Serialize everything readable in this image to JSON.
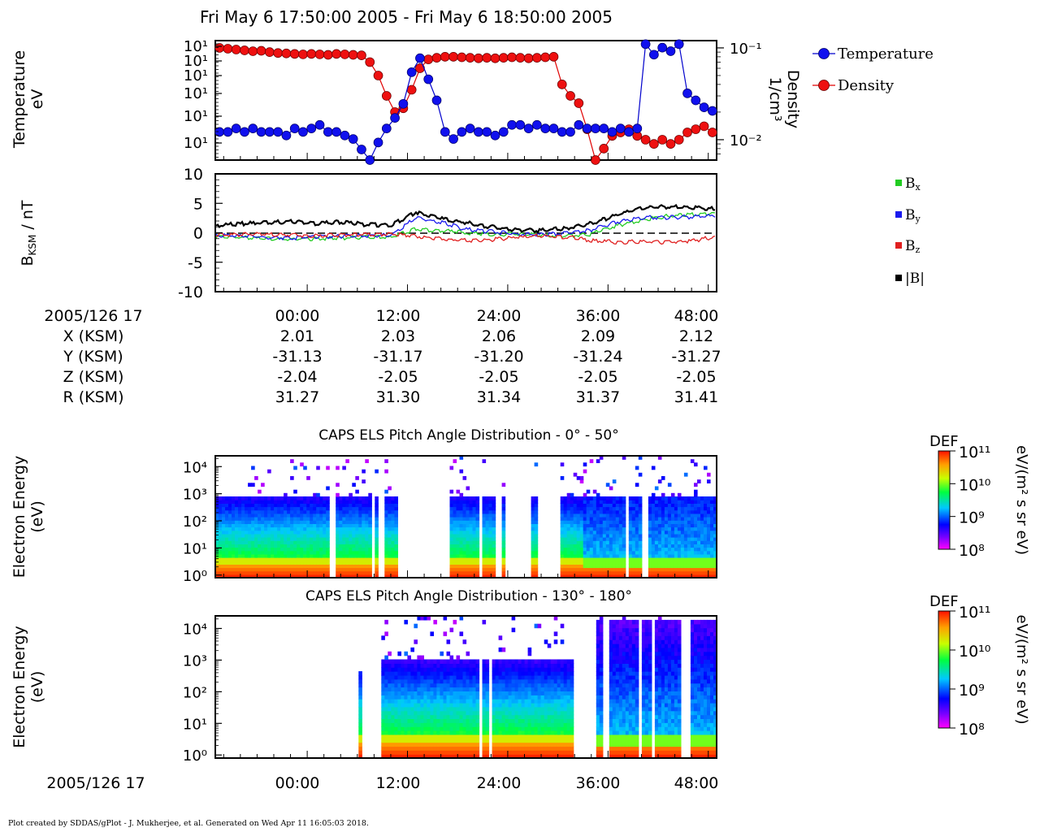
{
  "title": "Fri May 6 17:50:00 2005 - Fri May 6 18:50:00 2005",
  "footer": "Plot created by SDDAS/gPlot - J. Mukherjee, et al.  Generated on Wed Apr 11 16:05:03 2018.",
  "colors": {
    "temperature": "#0000cc",
    "density": "#e00000",
    "bx": "#22cc22",
    "by": "#1a1aee",
    "bz": "#e02020",
    "bmag": "#000000"
  },
  "chart_data": [
    {
      "type": "line",
      "panel": "plasma-moments",
      "ylabel": [
        "Temperature",
        "eV"
      ],
      "y2label": [
        "Density",
        "1/cm³"
      ],
      "y_tick_labels": [
        "10¹",
        "10¹",
        "10¹",
        "10¹",
        "10¹",
        "10¹"
      ],
      "y2_tick_labels": [
        "10⁻¹",
        "10⁻²"
      ],
      "y2lim": [
        0.006,
        0.12
      ],
      "y2_scale": "log",
      "xlim": [
        -11,
        49
      ],
      "legend": {
        "placement": "right",
        "entries": [
          "Temperature",
          "Density"
        ]
      },
      "series": [
        {
          "name": "Temperature",
          "color": "#0000cc",
          "x": [
            -10.5,
            -9.5,
            -8.5,
            -7.5,
            -6.5,
            -5.5,
            -4.5,
            -3.5,
            -2.5,
            -1.5,
            -0.5,
            0.5,
            1.5,
            2.5,
            3.5,
            4.5,
            5.5,
            6.5,
            7.5,
            8.5,
            9.5,
            10.5,
            11.5,
            12.5,
            13.5,
            14.5,
            15.5,
            16.5,
            17.5,
            18.5,
            19.5,
            20.5,
            21.5,
            22.5,
            23.5,
            24.5,
            25.5,
            26.5,
            27.5,
            28.5,
            29.5,
            30.5,
            31.5,
            32.5,
            33.5,
            34.5,
            35.5,
            36.5,
            37.5,
            38.5,
            39.5,
            40.5,
            41.5,
            42.5,
            43.5,
            44.5,
            45.5,
            46.5,
            47.5,
            48.5
          ],
          "values": [
            3.4,
            3.4,
            3.5,
            3.4,
            3.5,
            3.4,
            3.4,
            3.4,
            3.3,
            3.5,
            3.4,
            3.5,
            3.6,
            3.4,
            3.4,
            3.3,
            3.2,
            2.9,
            2.6,
            3.1,
            3.5,
            3.8,
            4.2,
            5.1,
            5.5,
            4.9,
            4.3,
            3.4,
            3.2,
            3.4,
            3.5,
            3.4,
            3.4,
            3.3,
            3.4,
            3.6,
            3.6,
            3.5,
            3.6,
            3.5,
            3.5,
            3.4,
            3.4,
            3.6,
            3.5,
            3.5,
            3.5,
            3.4,
            3.5,
            3.4,
            3.5,
            5.9,
            5.6,
            5.8,
            5.7,
            5.9,
            4.5,
            4.3,
            4.1,
            4.0
          ]
        },
        {
          "name": "Density",
          "color": "#e00000",
          "x": [
            -10.5,
            -9.5,
            -8.5,
            -7.5,
            -6.5,
            -5.5,
            -4.5,
            -3.5,
            -2.5,
            -1.5,
            -0.5,
            0.5,
            1.5,
            2.5,
            3.5,
            4.5,
            5.5,
            6.5,
            7.5,
            8.5,
            9.5,
            10.5,
            11.5,
            12.5,
            13.5,
            14.5,
            15.5,
            16.5,
            17.5,
            18.5,
            19.5,
            20.5,
            21.5,
            22.5,
            23.5,
            24.5,
            25.5,
            26.5,
            27.5,
            28.5,
            29.5,
            30.5,
            31.5,
            32.5,
            33.5,
            34.5,
            35.5,
            36.5,
            37.5,
            38.5,
            39.5,
            40.5,
            41.5,
            42.5,
            43.5,
            44.5,
            45.5,
            46.5,
            47.5,
            48.5
          ],
          "values": [
            0.1,
            0.098,
            0.096,
            0.094,
            0.092,
            0.093,
            0.09,
            0.088,
            0.087,
            0.086,
            0.085,
            0.086,
            0.085,
            0.084,
            0.086,
            0.085,
            0.084,
            0.083,
            0.07,
            0.05,
            0.03,
            0.02,
            0.022,
            0.035,
            0.06,
            0.075,
            0.078,
            0.08,
            0.08,
            0.079,
            0.078,
            0.077,
            0.078,
            0.077,
            0.078,
            0.079,
            0.078,
            0.077,
            0.078,
            0.079,
            0.08,
            0.04,
            0.03,
            0.025,
            0.013,
            0.006,
            0.008,
            0.011,
            0.012,
            0.013,
            0.011,
            0.01,
            0.009,
            0.01,
            0.009,
            0.01,
            0.012,
            0.013,
            0.014,
            0.012
          ]
        }
      ]
    },
    {
      "type": "line",
      "panel": "magnetic-field",
      "ylabel": "B_KSM / nT",
      "ylim": [
        -10,
        10
      ],
      "y_tick_labels": [
        "10",
        "5",
        "0",
        "-5",
        "-10"
      ],
      "xlim": [
        -11,
        49
      ],
      "legend": {
        "placement": "right",
        "entries": [
          "Bx",
          "By",
          "Bz",
          "|B|"
        ]
      },
      "series": [
        {
          "name": "Bx",
          "color": "#22cc22",
          "x": [
            -11,
            -8,
            -5,
            -2,
            1,
            4,
            7,
            10,
            13,
            16,
            19,
            22,
            25,
            28,
            31,
            34,
            37,
            40,
            43,
            46,
            49
          ],
          "values": [
            -0.6,
            -0.8,
            -1.0,
            -1.1,
            -1.0,
            -0.9,
            -0.7,
            -0.8,
            0.6,
            0.4,
            0.0,
            -0.3,
            -0.2,
            -0.4,
            -0.6,
            -0.2,
            1.2,
            2.2,
            2.8,
            3.1,
            3.3
          ]
        },
        {
          "name": "By",
          "color": "#1a1aee",
          "x": [
            -11,
            -8,
            -5,
            -2,
            1,
            4,
            7,
            10,
            13,
            16,
            19,
            22,
            25,
            28,
            31,
            34,
            37,
            40,
            43,
            46,
            49
          ],
          "values": [
            -0.4,
            -0.5,
            -0.8,
            -0.9,
            -0.7,
            -0.6,
            -0.5,
            -0.4,
            2.5,
            1.8,
            0.6,
            0.2,
            -0.2,
            -0.3,
            -0.1,
            0.5,
            1.8,
            2.6,
            2.6,
            2.7,
            2.9
          ]
        },
        {
          "name": "Bz",
          "color": "#e02020",
          "x": [
            -11,
            -8,
            -5,
            -2,
            1,
            4,
            7,
            10,
            13,
            16,
            19,
            22,
            25,
            28,
            31,
            34,
            37,
            40,
            43,
            46,
            49
          ],
          "values": [
            -0.4,
            -0.3,
            -0.2,
            -0.4,
            -0.5,
            -0.4,
            -0.3,
            -0.2,
            -0.6,
            -1.0,
            -1.3,
            -1.2,
            -0.8,
            -0.5,
            -0.7,
            -1.3,
            -1.6,
            -1.5,
            -1.6,
            -1.4,
            -0.6
          ]
        },
        {
          "name": "|B|",
          "color": "#000000",
          "x": [
            -11,
            -8,
            -5,
            -2,
            1,
            4,
            7,
            10,
            13,
            16,
            19,
            22,
            25,
            28,
            31,
            34,
            37,
            40,
            43,
            46,
            49
          ],
          "values": [
            1.2,
            1.5,
            1.7,
            1.9,
            1.6,
            1.8,
            1.4,
            1.3,
            3.5,
            2.4,
            1.7,
            1.0,
            0.5,
            0.4,
            0.8,
            1.6,
            3.0,
            4.2,
            4.4,
            4.3,
            4.1
          ]
        }
      ]
    },
    {
      "type": "heatmap",
      "panel": "pad-0-50",
      "title": "CAPS ELS Pitch Angle Distribution - 0° - 50°",
      "ylabel": [
        "Electron Energy",
        "(eV)"
      ],
      "y_scale": "log",
      "ylim": [
        0.8,
        25000
      ],
      "y_tick_labels": [
        "10⁴",
        "10³",
        "10²",
        "10¹",
        "10⁰"
      ],
      "xlim": [
        -11,
        49
      ],
      "colorbar": {
        "label": "DEF",
        "unit": "eV/(m² s sr eV)",
        "ticks": [
          "10¹¹",
          "10¹⁰",
          "10⁹",
          "10⁸"
        ],
        "range_log10": [
          8,
          11
        ]
      },
      "data_gaps": [
        [
          -1.4,
          -1.2
        ],
        [
          2.8,
          3.6
        ],
        [
          7.6,
          8.0
        ],
        [
          8.6,
          9.1
        ],
        [
          11.0,
          17.2
        ],
        [
          20.7,
          21.0
        ],
        [
          22.6,
          23.3
        ],
        [
          23.8,
          26.6
        ],
        [
          27.4,
          30.2
        ],
        [
          38.2,
          38.5
        ],
        [
          40.1,
          40.8
        ]
      ]
    },
    {
      "type": "heatmap",
      "panel": "pad-130-180",
      "title": "CAPS ELS Pitch Angle Distribution - 130° - 180°",
      "ylabel": [
        "Electron Energy",
        "(eV)"
      ],
      "y_scale": "log",
      "ylim": [
        0.8,
        25000
      ],
      "y_tick_labels": [
        "10⁴",
        "10³",
        "10²",
        "10¹",
        "10⁰"
      ],
      "xlim": [
        -11,
        49
      ],
      "colorbar": {
        "label": "DEF",
        "unit": "eV/(m² s sr eV)",
        "ticks": [
          "10¹¹",
          "10¹⁰",
          "10⁹",
          "10⁸"
        ],
        "range_log10": [
          8,
          11
        ]
      },
      "data_gaps": [
        [
          -11,
          6.2
        ],
        [
          6.5,
          9.0
        ],
        [
          20.6,
          21.0
        ],
        [
          21.6,
          22.2
        ],
        [
          31.7,
          34.5
        ],
        [
          35.3,
          36.0
        ],
        [
          39.5,
          40.0
        ],
        [
          41.3,
          41.6
        ],
        [
          44.7,
          45.9
        ]
      ]
    }
  ],
  "ephemeris": {
    "date_label": "2005/126 17",
    "times": [
      "00:00",
      "12:00",
      "24:00",
      "36:00",
      "48:00"
    ],
    "rows": [
      {
        "label": "X (KSM)",
        "values": [
          "2.01",
          "2.03",
          "2.06",
          "2.09",
          "2.12"
        ]
      },
      {
        "label": "Y (KSM)",
        "values": [
          "-31.13",
          "-31.17",
          "-31.20",
          "-31.24",
          "-31.27"
        ]
      },
      {
        "label": "Z (KSM)",
        "values": [
          "-2.04",
          "-2.05",
          "-2.05",
          "-2.05",
          "-2.05"
        ]
      },
      {
        "label": "R (KSM)",
        "values": [
          "31.27",
          "31.30",
          "31.34",
          "31.37",
          "31.41"
        ]
      }
    ]
  },
  "bottom_axis": {
    "date_label": "2005/126 17",
    "times": [
      "00:00",
      "12:00",
      "24:00",
      "36:00",
      "48:00"
    ]
  }
}
